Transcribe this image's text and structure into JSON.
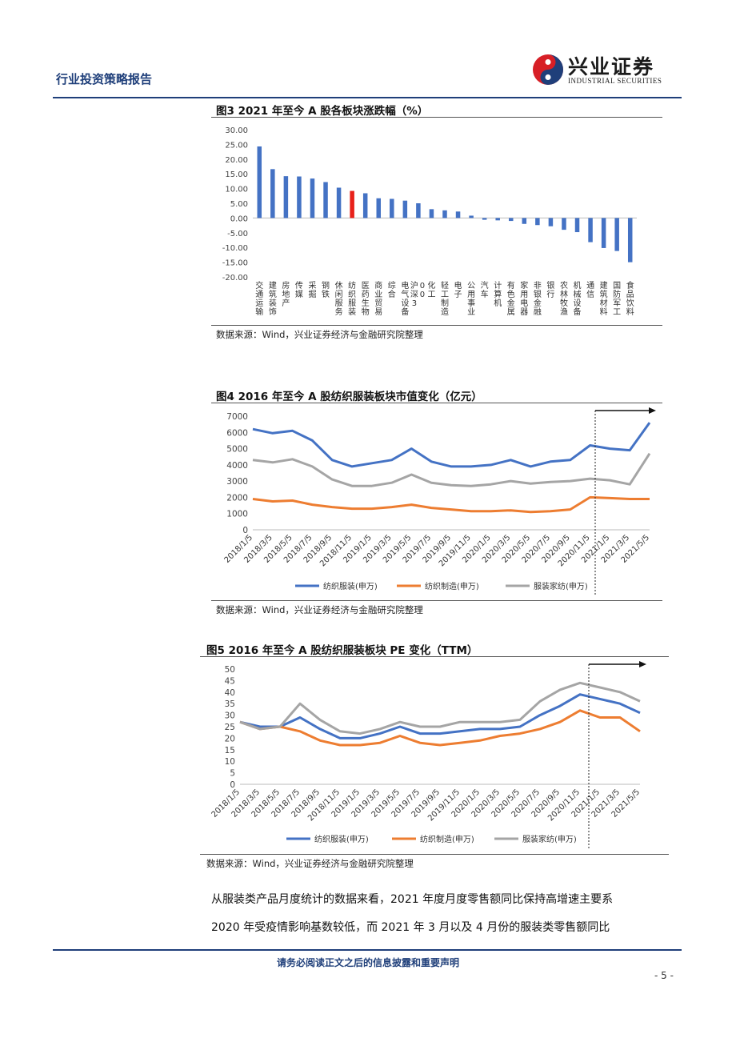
{
  "header": {
    "title": "行业投资策略报告",
    "logo_cn": "兴业证券",
    "logo_en": "INDUSTRIAL SECURITIES"
  },
  "figures": [
    {
      "title": "图3 2021 年至今 A 股各板块涨跌幅（%）",
      "source": "数据来源：Wind，兴业证券经济与金融研究院整理"
    },
    {
      "title": "图4 2016 年至今 A 股纺织服装板块市值变化（亿元）",
      "source": "数据来源：Wind，兴业证券经济与金融研究院整理"
    },
    {
      "title": "图5 2016 年至今 A 股纺织服装板块 PE 变化（TTM）",
      "source": "数据来源：Wind，兴业证券经济与金融研究院整理"
    }
  ],
  "chart_data": [
    {
      "type": "bar",
      "categories": [
        "交通运输",
        "建筑装饰",
        "房地产",
        "传媒",
        "采掘",
        "钢铁",
        "休闲服务",
        "纺织服装",
        "医药生物",
        "商业贸易",
        "综合",
        "电气设备",
        "沪深300",
        "化工",
        "轻工制造",
        "电子",
        "公用事业",
        "汽车",
        "计算机",
        "有色金属",
        "家用电器",
        "非银金融",
        "银行",
        "农林牧渔",
        "机械设备",
        "通信",
        "建筑材料",
        "国防军工",
        "食品饮料"
      ],
      "values": [
        24.3,
        16.6,
        14.2,
        14.1,
        13.4,
        12.2,
        10.3,
        9.2,
        8.4,
        6.7,
        6.5,
        5.9,
        5.0,
        3.0,
        2.6,
        2.2,
        0.8,
        -0.6,
        -0.8,
        -1.0,
        -2.0,
        -2.4,
        -2.8,
        -4.0,
        -4.8,
        -8.2,
        -10.2,
        -11.2,
        -15.0
      ],
      "highlight_color": "#e8211a",
      "bar_color": "#4472c4",
      "ylim": [
        -20,
        30
      ],
      "yticks": [
        "30.00",
        "25.00",
        "20.00",
        "15.00",
        "10.00",
        "5.00",
        "0.00",
        "-5.00",
        "-10.00",
        "-15.00",
        "-20.00"
      ]
    },
    {
      "type": "line",
      "x": [
        "2018/1/5",
        "2018/3/5",
        "2018/5/5",
        "2018/7/5",
        "2018/9/5",
        "2018/11/5",
        "2019/1/5",
        "2019/3/5",
        "2019/5/5",
        "2019/7/5",
        "2019/9/5",
        "2019/11/5",
        "2020/1/5",
        "2020/3/5",
        "2020/5/5",
        "2020/7/5",
        "2020/9/5",
        "2020/11/5",
        "2021/1/5",
        "2021/3/5",
        "2021/5/5"
      ],
      "ylim": [
        0,
        7000
      ],
      "yticks": [
        "7000",
        "6000",
        "5000",
        "4000",
        "3000",
        "2000",
        "1000",
        "0"
      ],
      "series": [
        {
          "name": "纺织服装(申万)",
          "color": "#4472c4",
          "values": [
            6200,
            5950,
            6100,
            5500,
            4300,
            3900,
            4100,
            4300,
            5000,
            4200,
            3900,
            3900,
            4000,
            4300,
            3900,
            4200,
            4300,
            5200,
            5000,
            4900,
            6600
          ]
        },
        {
          "name": "纺织制造(申万)",
          "color": "#ed7d31",
          "values": [
            1900,
            1750,
            1800,
            1550,
            1400,
            1300,
            1300,
            1400,
            1550,
            1350,
            1250,
            1150,
            1150,
            1200,
            1100,
            1150,
            1250,
            2000,
            1950,
            1900,
            1900
          ]
        },
        {
          "name": "服装家纺(申万)",
          "color": "#a5a5a5",
          "values": [
            4300,
            4150,
            4350,
            3900,
            3100,
            2700,
            2700,
            2900,
            3400,
            2900,
            2750,
            2700,
            2800,
            3000,
            2850,
            2950,
            3000,
            3150,
            3050,
            2800,
            4700
          ]
        }
      ]
    },
    {
      "type": "line",
      "x": [
        "2018/1/5",
        "2018/3/5",
        "2018/5/5",
        "2018/7/5",
        "2018/9/5",
        "2018/11/5",
        "2019/1/5",
        "2019/3/5",
        "2019/5/5",
        "2019/7/5",
        "2019/9/5",
        "2019/11/5",
        "2020/1/5",
        "2020/3/5",
        "2020/5/5",
        "2020/7/5",
        "2020/9/5",
        "2020/11/5",
        "2021/1/5",
        "2021/3/5",
        "2021/5/5"
      ],
      "ylim": [
        0,
        50
      ],
      "yticks": [
        "50",
        "45",
        "40",
        "35",
        "30",
        "25",
        "20",
        "15",
        "10",
        "5",
        "0"
      ],
      "series": [
        {
          "name": "纺织服装(申万)",
          "color": "#4472c4",
          "values": [
            27,
            25,
            25,
            29,
            24,
            20,
            20,
            22,
            25,
            22,
            22,
            23,
            24,
            24,
            25,
            30,
            34,
            39,
            37,
            35,
            31
          ]
        },
        {
          "name": "纺织制造(申万)",
          "color": "#ed7d31",
          "values": [
            27,
            24,
            25,
            23,
            19,
            17,
            17,
            18,
            21,
            18,
            17,
            18,
            19,
            21,
            22,
            24,
            27,
            32,
            29,
            29,
            23
          ]
        },
        {
          "name": "服装家纺(申万)",
          "color": "#a5a5a5",
          "values": [
            27,
            24,
            25,
            35,
            28,
            23,
            22,
            24,
            27,
            25,
            25,
            27,
            27,
            27,
            28,
            36,
            41,
            44,
            42,
            40,
            36
          ]
        }
      ]
    }
  ],
  "paragraph": {
    "line1": "从服装类产品月度统计的数据来看，2021 年度月度零售额同比保持高增速主要系",
    "line2": "2020 年受疫情影响基数较低，而 2021 年 3 月以及 4 月份的服装类零售额同比"
  },
  "footer": {
    "notice": "请务必阅读正文之后的信息披露和重要声明",
    "page": "- 5 -"
  }
}
